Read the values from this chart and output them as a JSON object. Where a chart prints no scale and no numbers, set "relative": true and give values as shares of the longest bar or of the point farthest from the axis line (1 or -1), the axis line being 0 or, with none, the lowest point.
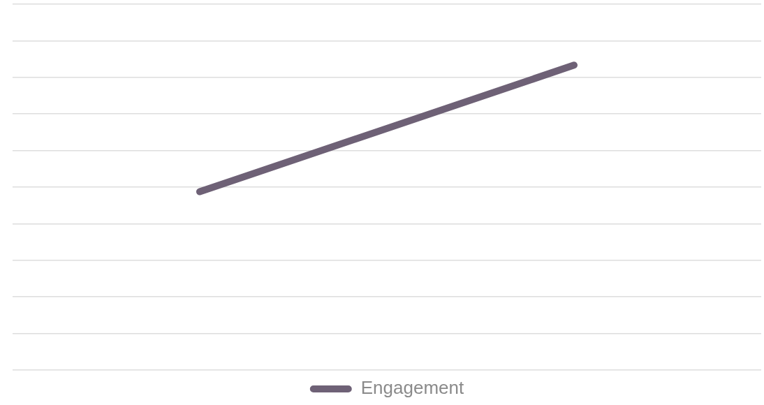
{
  "chart_data": {
    "type": "line",
    "relative": true,
    "categories": [
      null,
      null
    ],
    "series": [
      {
        "name": "Engagement",
        "color": "#6e6176",
        "values": [
          0.585,
          1
        ]
      }
    ],
    "grid": "y",
    "legend": "bottom",
    "marker": "none",
    "line_style": "solid",
    "tick_labels": false
  }
}
